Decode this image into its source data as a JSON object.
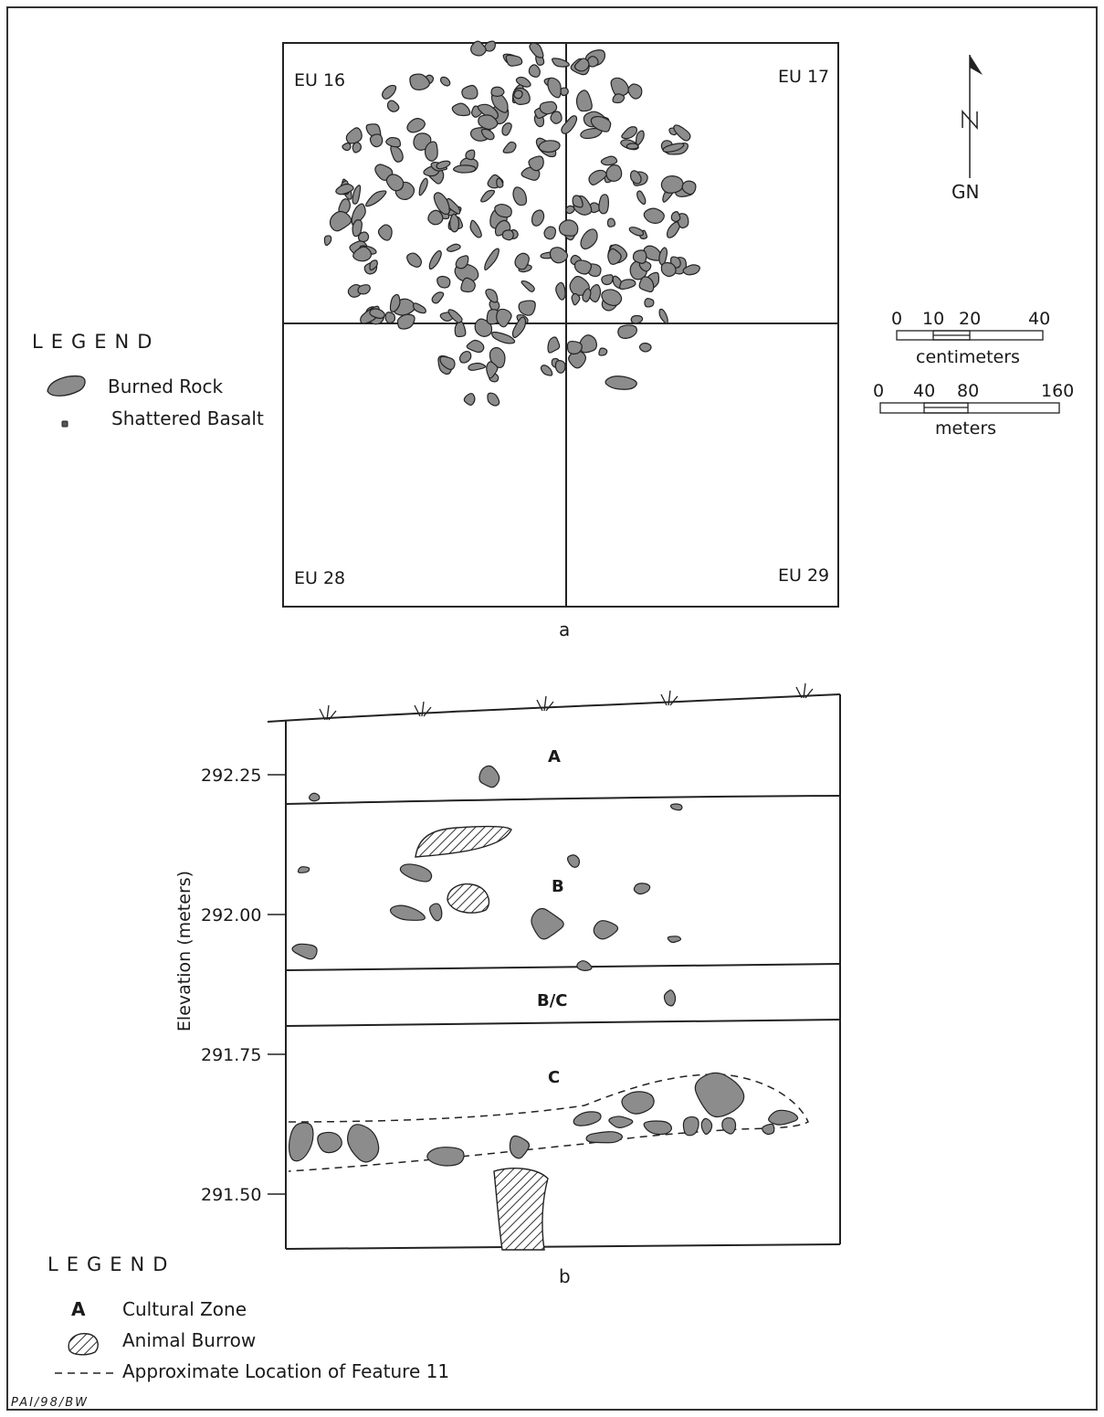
{
  "plan_view": {
    "caption": "a",
    "units": [
      "EU 16",
      "EU 17",
      "EU 28",
      "EU 29"
    ],
    "north_arrow_label": "GN"
  },
  "legend_a": {
    "title": "LEGEND",
    "items": [
      {
        "symbol": "burned-rock",
        "label": "Burned Rock"
      },
      {
        "symbol": "shattered-basalt",
        "label": "Shattered Basalt"
      }
    ]
  },
  "scale_bars": [
    {
      "ticks": [
        "0",
        "10",
        "20",
        "40"
      ],
      "unit": "centimeters"
    },
    {
      "ticks": [
        "0",
        "40",
        "80",
        "160"
      ],
      "unit": "meters"
    }
  ],
  "profile_view": {
    "caption": "b",
    "axis_label": "Elevation (meters)",
    "elevations": [
      "292.25",
      "292.00",
      "291.75",
      "291.50"
    ],
    "zones": [
      "A",
      "B",
      "B/C",
      "C"
    ]
  },
  "legend_b": {
    "title": "LEGEND",
    "items": [
      {
        "symbol": "A",
        "label": "Cultural Zone"
      },
      {
        "symbol": "animal-burrow",
        "label": "Animal Burrow"
      },
      {
        "symbol": "dashed-line",
        "label": "Approximate Location of Feature 11"
      }
    ]
  },
  "credit": "PAI/98/BW",
  "colors": {
    "rock_fill": "#8c8c8c",
    "line": "#222222"
  }
}
